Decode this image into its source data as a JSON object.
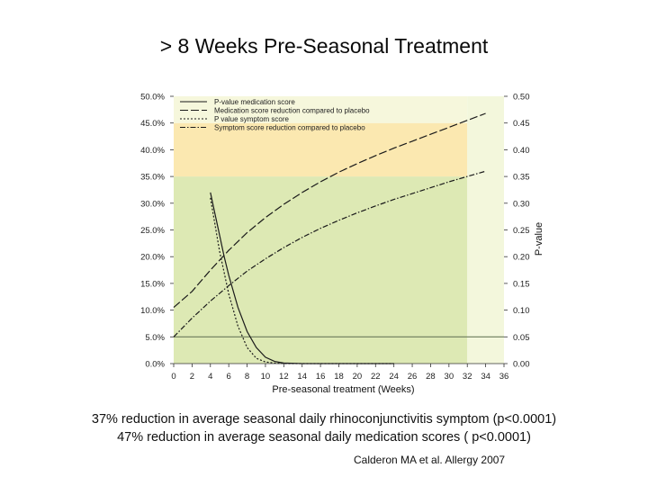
{
  "slide": {
    "title": "> 8 Weeks Pre-Seasonal Treatment",
    "caption_line1": "37% reduction in average seasonal daily rhinoconjunctivitis symptom (p<0.0001)",
    "caption_line2": "47% reduction in average seasonal daily medication scores ( p<0.0001)",
    "citation": "Calderon MA et al. Allergy 2007"
  },
  "chart_data": {
    "type": "line",
    "title": "",
    "xlabel": "Pre-seasonal treatment (Weeks)",
    "ylabel": "",
    "y2label": "P-value",
    "xlim": [
      0,
      36
    ],
    "ylim": [
      0,
      50
    ],
    "y2lim": [
      0,
      0.5
    ],
    "x_ticks": [
      "0",
      "2",
      "4",
      "6",
      "8",
      "10",
      "12",
      "14",
      "16",
      "18",
      "20",
      "22",
      "24",
      "26",
      "28",
      "30",
      "32",
      "34",
      "36"
    ],
    "y_ticks": [
      "0.0%",
      "5.0%",
      "10.0%",
      "15.0%",
      "20.0%",
      "25.0%",
      "30.0%",
      "35.0%",
      "40.0%",
      "45.0%",
      "50.0%"
    ],
    "y2_ticks": [
      "0.00",
      "0.05",
      "0.10",
      "0.15",
      "0.20",
      "0.25",
      "0.30",
      "0.35",
      "0.40",
      "0.45",
      "0.50"
    ],
    "legend_position": "top-left",
    "reference_line": 5,
    "bands": [
      {
        "name": "green",
        "y_from": 0,
        "y_to": 35,
        "x_to": 32,
        "color": "#dde9b4"
      },
      {
        "name": "orange",
        "y_from": 35,
        "y_to": 45,
        "x_to": 32,
        "color": "#fbe8b0"
      },
      {
        "name": "pale",
        "y_from": 45,
        "y_to": 50,
        "x_to": 32,
        "color": "#f6f7dc"
      },
      {
        "name": "right-pale",
        "y_from": 0,
        "y_to": 50,
        "x_from": 32,
        "x_to": 36,
        "color": "#f3f7dc"
      }
    ],
    "series": [
      {
        "name": "P-value medication score",
        "axis": "right",
        "style": "solid",
        "x": [
          4,
          4.5,
          5,
          5.5,
          6,
          7,
          8,
          9,
          10,
          11,
          12,
          14,
          16,
          18,
          20,
          22,
          24
        ],
        "y": [
          0.32,
          0.28,
          0.24,
          0.2,
          0.165,
          0.105,
          0.06,
          0.03,
          0.012,
          0.004,
          0.001,
          0,
          0,
          0,
          0,
          0,
          0
        ]
      },
      {
        "name": "Medication score reduction compared to placebo",
        "axis": "left",
        "style": "longdash",
        "x": [
          0,
          2,
          4,
          6,
          8,
          10,
          12,
          14,
          16,
          18,
          20,
          22,
          24,
          26,
          28,
          30,
          32,
          34
        ],
        "y": [
          10.5,
          13.5,
          17.5,
          21.2,
          24.5,
          27.3,
          29.8,
          32.0,
          34.0,
          35.8,
          37.4,
          38.9,
          40.3,
          41.6,
          42.9,
          44.2,
          45.5,
          46.8
        ]
      },
      {
        "name": "P value symptom score",
        "axis": "right",
        "style": "dotted",
        "x": [
          4,
          4.5,
          5,
          5.5,
          6,
          7,
          8,
          9,
          10,
          11,
          12,
          14,
          16,
          18,
          20,
          22,
          24
        ],
        "y": [
          0.31,
          0.26,
          0.21,
          0.17,
          0.13,
          0.07,
          0.03,
          0.01,
          0.003,
          0.001,
          0,
          0,
          0,
          0,
          0,
          0,
          0
        ]
      },
      {
        "name": "Symptom score reduction compared to placebo",
        "axis": "left",
        "style": "dashdot",
        "x": [
          0,
          2,
          4,
          6,
          8,
          10,
          12,
          14,
          16,
          18,
          20,
          22,
          24,
          26,
          28,
          30,
          32,
          34
        ],
        "y": [
          5.0,
          8.5,
          11.7,
          14.6,
          17.3,
          19.6,
          21.7,
          23.6,
          25.3,
          26.8,
          28.2,
          29.5,
          30.7,
          31.8,
          32.9,
          34.0,
          35.0,
          36.0
        ]
      }
    ]
  }
}
